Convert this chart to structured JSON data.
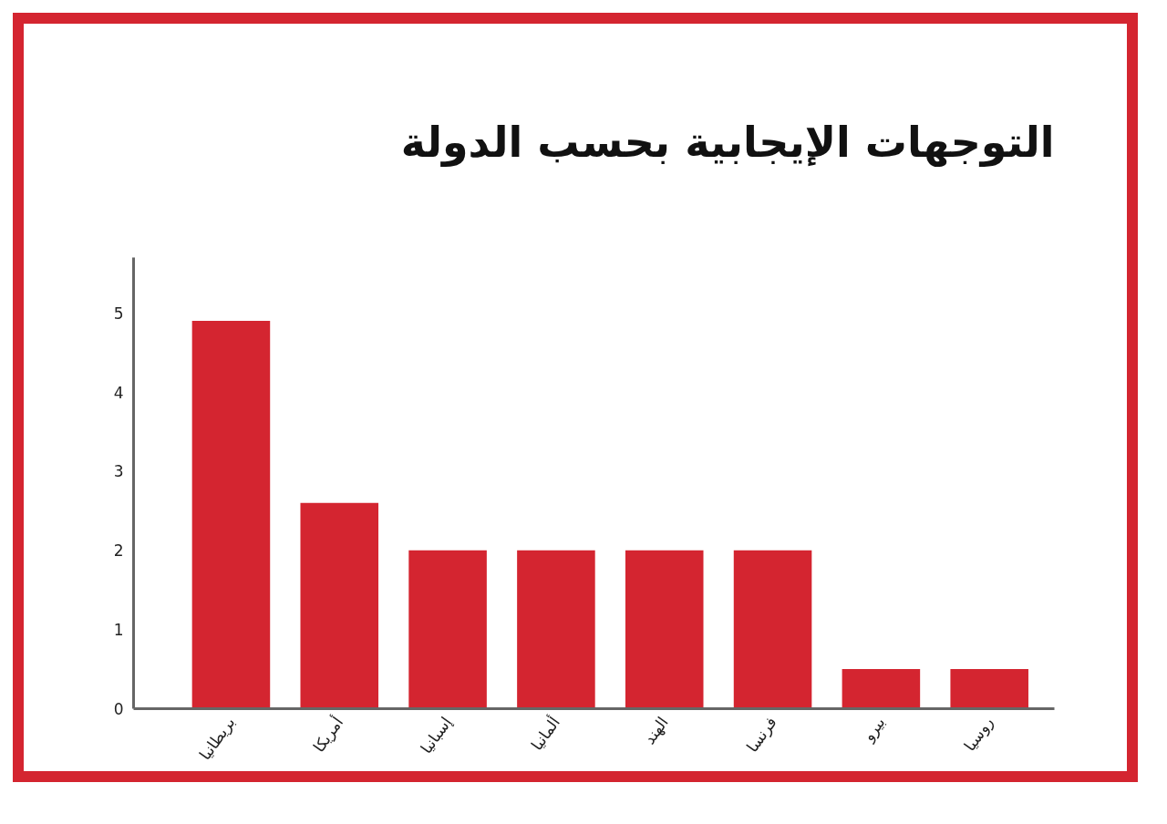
{
  "chart_data": {
    "type": "bar",
    "title": "التوجهات الإيجابية بحسب الدولة",
    "categories": [
      "بريطانيا",
      "أمريكا",
      "إسبانيا",
      "ألمانيا",
      "الهند",
      "فرنسا",
      "بيرو",
      "روسيا"
    ],
    "values": [
      4.9,
      2.6,
      2,
      2,
      2,
      2,
      0.5,
      0.5
    ],
    "color": "#d42530",
    "ylim": [
      0,
      5.7
    ],
    "yticks": [
      0,
      1,
      2,
      3,
      4,
      5
    ],
    "grid": false
  }
}
